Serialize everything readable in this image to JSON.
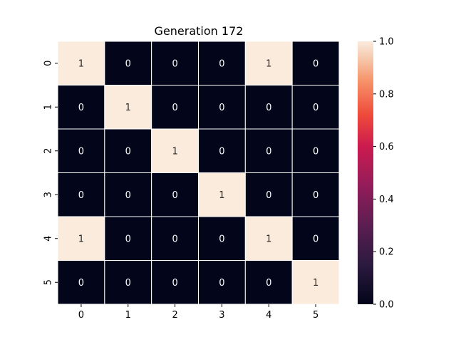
{
  "chart_data": {
    "type": "heatmap",
    "title": "Generation 172",
    "xlabel": "",
    "ylabel": "",
    "x_categories": [
      "0",
      "1",
      "2",
      "3",
      "4",
      "5"
    ],
    "y_categories": [
      "0",
      "1",
      "2",
      "3",
      "4",
      "5"
    ],
    "values": [
      [
        1,
        0,
        0,
        0,
        1,
        0
      ],
      [
        0,
        1,
        0,
        0,
        0,
        0
      ],
      [
        0,
        0,
        1,
        0,
        0,
        0
      ],
      [
        0,
        0,
        0,
        1,
        0,
        0
      ],
      [
        1,
        0,
        0,
        0,
        1,
        0
      ],
      [
        0,
        0,
        0,
        0,
        0,
        1
      ]
    ],
    "annotated": true,
    "colorbar": {
      "range": [
        0.0,
        1.0
      ],
      "ticks": [
        0.0,
        0.2,
        0.4,
        0.6,
        0.8,
        1.0
      ],
      "tick_labels": [
        "0.0",
        "0.2",
        "0.4",
        "0.6",
        "0.8",
        "1.0"
      ],
      "colormap": "rocket"
    },
    "colors": {
      "low": "#03051a",
      "high": "#faebdd",
      "cell_border": "#ffffff",
      "text_on_low": "#ffffff",
      "text_on_high": "#262626"
    },
    "grid": false
  }
}
